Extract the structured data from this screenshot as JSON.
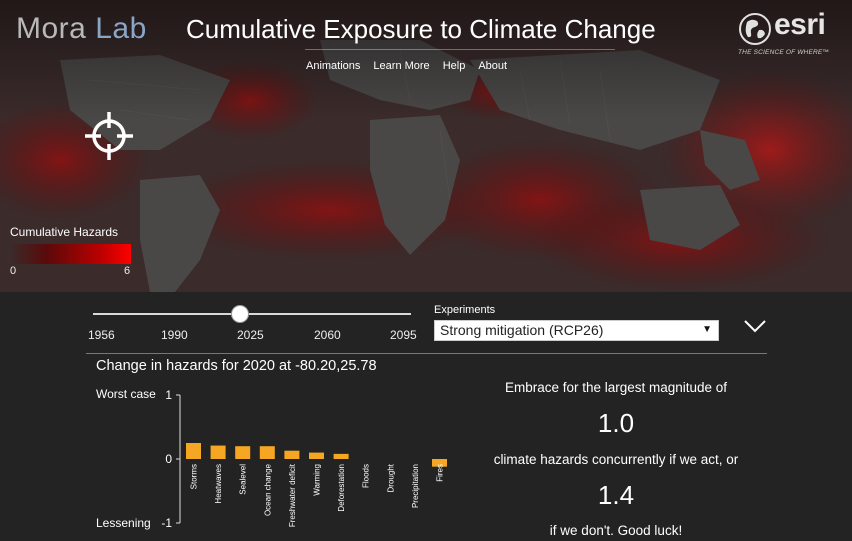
{
  "brand": {
    "part1": "Mora",
    "part2": "Lab"
  },
  "title": "Cumulative Exposure to Climate Change",
  "nav": [
    "Animations",
    "Learn More",
    "Help",
    "About"
  ],
  "esri": {
    "word": "esri",
    "tagline": "THE SCIENCE OF WHERE™"
  },
  "legend": {
    "title": "Cumulative Hazards",
    "min": "0",
    "max": "6"
  },
  "timeline": {
    "ticks": [
      "1956",
      "1990",
      "2025",
      "2060",
      "2095"
    ],
    "selected_year": 2020
  },
  "experiments": {
    "label": "Experiments",
    "selected": "Strong mitigation (RCP26)"
  },
  "change_title": "Change in hazards for 2020 at -80.20,25.78",
  "chart_data": {
    "type": "bar",
    "categories": [
      "Storms",
      "Heatwaves",
      "Sealevel",
      "Ocean change",
      "Freshwater deficit",
      "Warming",
      "Deforestation",
      "Floods",
      "Drought",
      "Precipitation",
      "Fires"
    ],
    "values": [
      0.25,
      0.21,
      0.2,
      0.2,
      0.13,
      0.1,
      0.08,
      0,
      0,
      0,
      -0.12
    ],
    "ylim": [
      -1,
      1
    ],
    "yticks": [
      "1",
      "0",
      "-1"
    ],
    "ylabel_top": "Worst case",
    "ylabel_bottom": "Lessening",
    "color": "#f5a623"
  },
  "info": {
    "line1": "Embrace for the largest magnitude of",
    "value1": "1.0",
    "line2": "climate hazards concurrently if we act, or",
    "value2": "1.4",
    "line3": "if we don't. Good luck!"
  },
  "colors": {
    "accent": "#f5a623",
    "hazard": "#ff0000",
    "background": "#232323"
  }
}
